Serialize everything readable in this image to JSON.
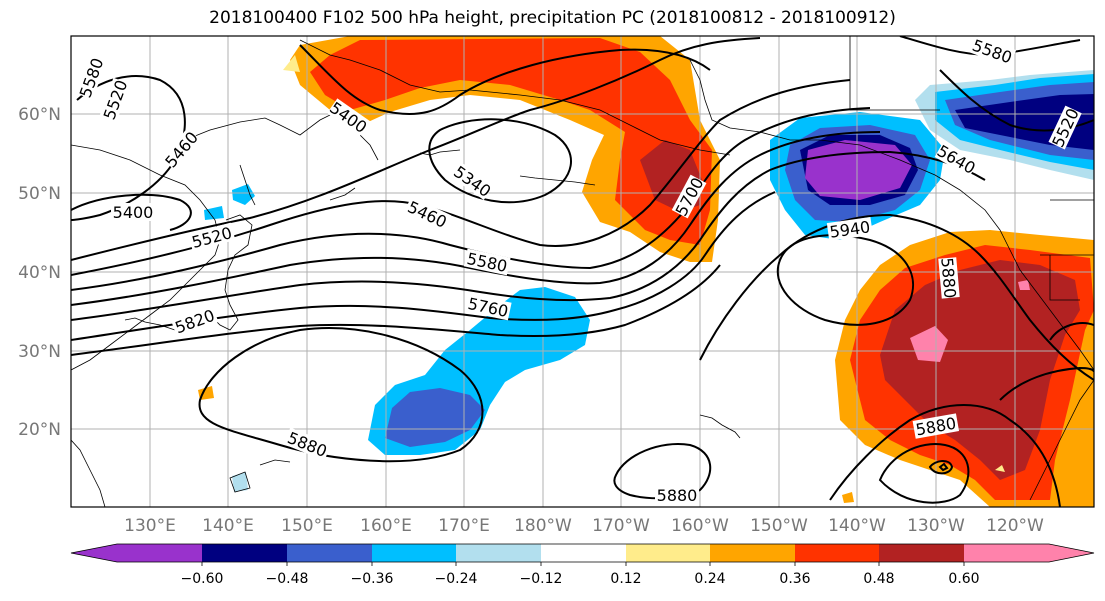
{
  "title": "2018100400 F102 500 hPa height, precipitation PC (2018100812 - 2018100912)",
  "lat_labels": [
    "60°N",
    "50°N",
    "40°N",
    "30°N",
    "20°N"
  ],
  "lon_labels": [
    "130°E",
    "140°E",
    "150°E",
    "160°E",
    "170°E",
    "180°W",
    "170°W",
    "160°W",
    "150°W",
    "140°W",
    "130°W",
    "120°W"
  ],
  "colorbar": {
    "colors": [
      "#9932CC",
      "#000080",
      "#3A5FCD",
      "#00BFFF",
      "#B2DFEE",
      "#FFFFFF",
      "#FFEC8B",
      "#FFA500",
      "#FF3300",
      "#B22222",
      "#FF82AB"
    ],
    "tick_labels": [
      "−0.60",
      "−0.48",
      "−0.36",
      "−0.24",
      "−0.12",
      "0.12",
      "0.24",
      "0.36",
      "0.48",
      "0.60"
    ]
  },
  "contour_labels": [
    "5580",
    "5520",
    "5460",
    "5400",
    "5400",
    "5520",
    "5820",
    "5340",
    "5460",
    "5580",
    "5760",
    "5880",
    "5700",
    "5940",
    "5640",
    "5880",
    "5880",
    "5880",
    "5580",
    "5520"
  ]
}
